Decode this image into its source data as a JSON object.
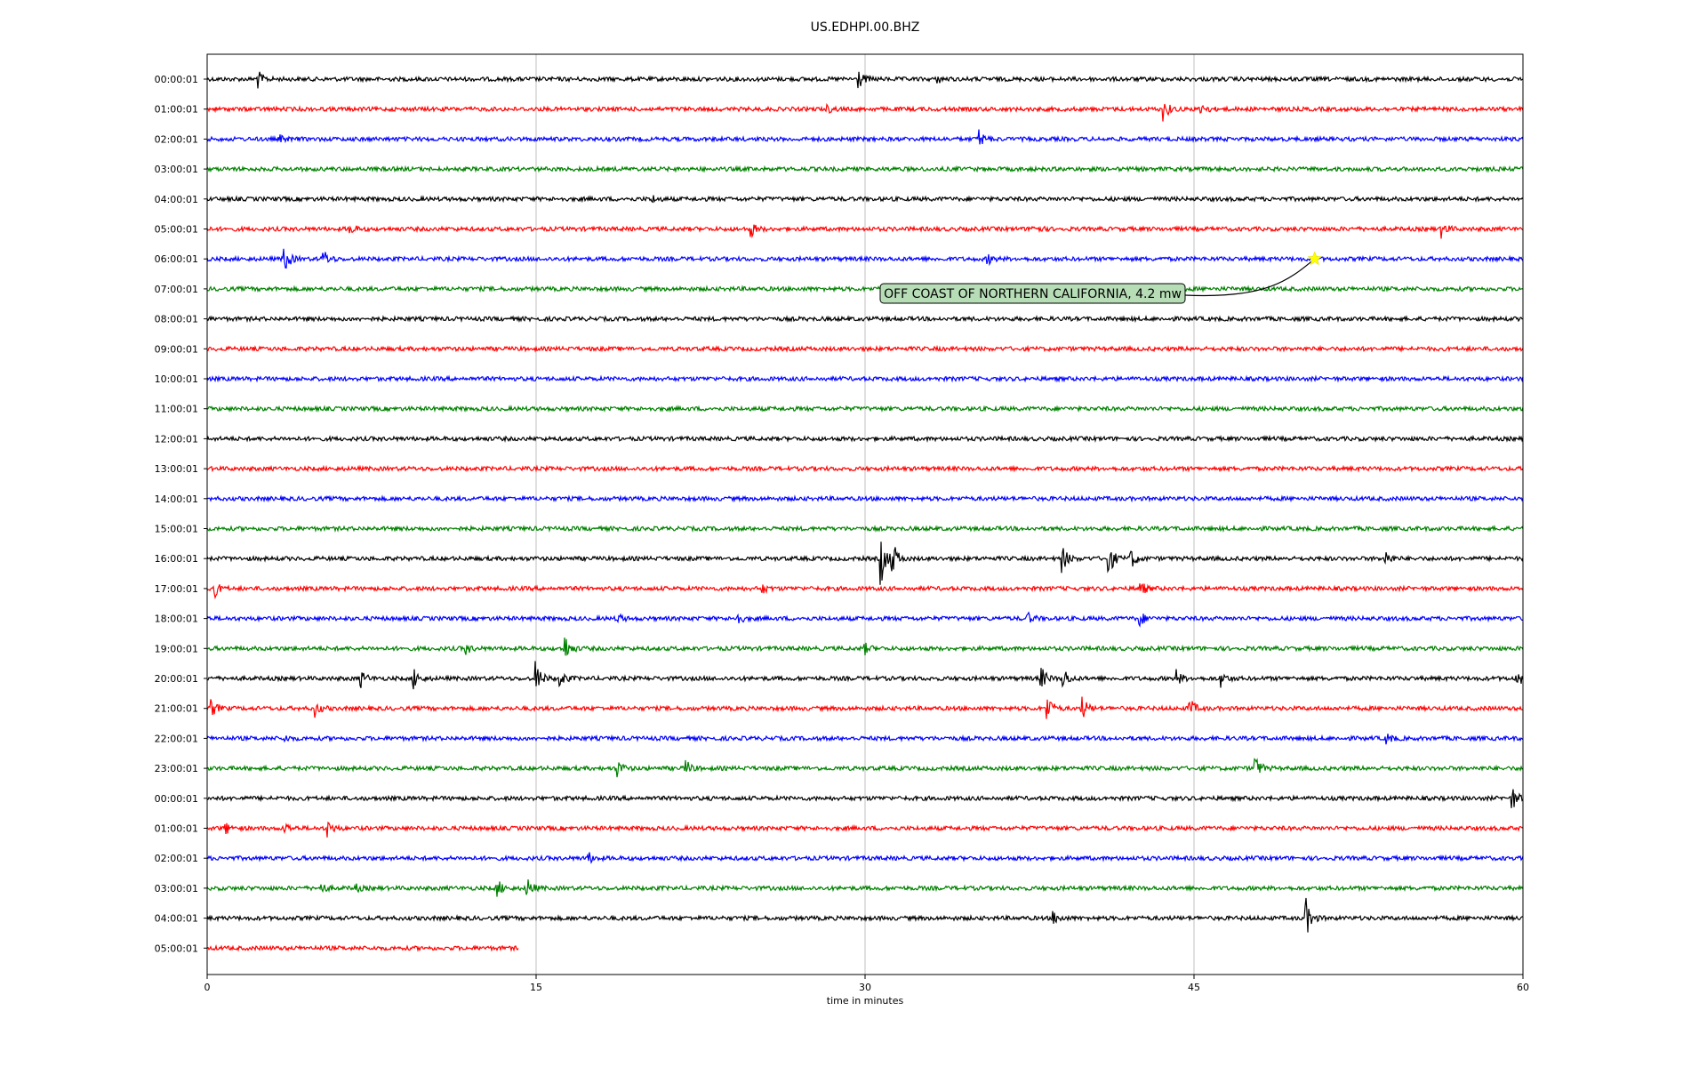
{
  "chart_data": {
    "type": "line",
    "title": "US.EDHPI.00.BHZ",
    "xlabel": "time in minutes",
    "ylabel": "",
    "xlim": [
      0,
      60
    ],
    "x_ticks": [
      "0",
      "15",
      "30",
      "45",
      "60"
    ],
    "grid": "vertical",
    "colors": [
      "#000000",
      "#ff0000",
      "#0000ff",
      "#008000"
    ],
    "rows": [
      {
        "label": "00:00:01",
        "duration": 60,
        "events": [
          {
            "t": 2.3,
            "amp": 0.55
          },
          {
            "t": 29.7,
            "amp": 0.6
          },
          {
            "t": 33.3,
            "amp": 0.2
          }
        ]
      },
      {
        "label": "01:00:01",
        "duration": 60,
        "events": [
          {
            "t": 43.6,
            "amp": 0.7
          },
          {
            "t": 45.3,
            "amp": 0.5
          },
          {
            "t": 28.3,
            "amp": 0.2
          }
        ]
      },
      {
        "label": "02:00:01",
        "duration": 60,
        "events": [
          {
            "t": 35.2,
            "amp": 0.55
          },
          {
            "t": 3.3,
            "amp": 0.2
          }
        ]
      },
      {
        "label": "03:00:01",
        "duration": 60,
        "events": []
      },
      {
        "label": "04:00:01",
        "duration": 60,
        "events": [
          {
            "t": 20.3,
            "amp": 0.2
          }
        ]
      },
      {
        "label": "05:00:01",
        "duration": 60,
        "events": [
          {
            "t": 6.5,
            "amp": 0.4
          },
          {
            "t": 24.8,
            "amp": 0.45
          },
          {
            "t": 37.6,
            "amp": 0.4
          },
          {
            "t": 56.3,
            "amp": 0.5
          }
        ]
      },
      {
        "label": "06:00:01",
        "duration": 60,
        "events": [
          {
            "t": 3.5,
            "amp": 1.0
          },
          {
            "t": 5.3,
            "amp": 0.55
          },
          {
            "t": 35.6,
            "amp": 0.3
          }
        ]
      },
      {
        "label": "07:00:01",
        "duration": 60,
        "events": []
      },
      {
        "label": "08:00:01",
        "duration": 60,
        "events": []
      },
      {
        "label": "09:00:01",
        "duration": 60,
        "events": []
      },
      {
        "label": "10:00:01",
        "duration": 60,
        "events": []
      },
      {
        "label": "11:00:01",
        "duration": 60,
        "events": []
      },
      {
        "label": "12:00:01",
        "duration": 60,
        "events": []
      },
      {
        "label": "13:00:01",
        "duration": 60,
        "events": []
      },
      {
        "label": "14:00:01",
        "duration": 60,
        "events": []
      },
      {
        "label": "15:00:01",
        "duration": 60,
        "events": []
      },
      {
        "label": "16:00:01",
        "duration": 60,
        "events": [
          {
            "t": 30.7,
            "amp": 1.8
          },
          {
            "t": 31.2,
            "amp": 1.3
          },
          {
            "t": 39.0,
            "amp": 0.8
          },
          {
            "t": 41.1,
            "amp": 1.1
          },
          {
            "t": 42.1,
            "amp": 0.7
          },
          {
            "t": 53.7,
            "amp": 0.55
          }
        ]
      },
      {
        "label": "17:00:01",
        "duration": 60,
        "events": [
          {
            "t": 0.3,
            "amp": 0.6
          },
          {
            "t": 25.3,
            "amp": 0.3
          },
          {
            "t": 42.5,
            "amp": 0.6
          }
        ]
      },
      {
        "label": "18:00:01",
        "duration": 60,
        "events": [
          {
            "t": 18.7,
            "amp": 0.3
          },
          {
            "t": 24.1,
            "amp": 0.5
          },
          {
            "t": 37.4,
            "amp": 0.35
          },
          {
            "t": 42.5,
            "amp": 0.5
          }
        ]
      },
      {
        "label": "19:00:01",
        "duration": 60,
        "events": [
          {
            "t": 11.8,
            "amp": 0.3
          },
          {
            "t": 16.3,
            "amp": 0.9
          },
          {
            "t": 30.0,
            "amp": 0.3
          }
        ]
      },
      {
        "label": "20:00:01",
        "duration": 60,
        "events": [
          {
            "t": 7.0,
            "amp": 0.55
          },
          {
            "t": 9.4,
            "amp": 0.7
          },
          {
            "t": 15.0,
            "amp": 1.0
          },
          {
            "t": 16.1,
            "amp": 0.5
          },
          {
            "t": 38.0,
            "amp": 0.8
          },
          {
            "t": 39.0,
            "amp": 0.8
          },
          {
            "t": 44.2,
            "amp": 0.5
          },
          {
            "t": 46.2,
            "amp": 0.5
          },
          {
            "t": 59.7,
            "amp": 0.7
          }
        ]
      },
      {
        "label": "21:00:01",
        "duration": 60,
        "events": [
          {
            "t": 0.2,
            "amp": 0.5
          },
          {
            "t": 4.9,
            "amp": 0.5
          },
          {
            "t": 38.3,
            "amp": 0.9
          },
          {
            "t": 39.9,
            "amp": 0.7
          },
          {
            "t": 44.8,
            "amp": 0.6
          }
        ]
      },
      {
        "label": "22:00:01",
        "duration": 60,
        "events": [
          {
            "t": 3.5,
            "amp": 0.2
          },
          {
            "t": 53.8,
            "amp": 0.3
          }
        ]
      },
      {
        "label": "23:00:01",
        "duration": 60,
        "events": [
          {
            "t": 18.7,
            "amp": 0.55
          },
          {
            "t": 21.8,
            "amp": 0.55
          },
          {
            "t": 47.8,
            "amp": 0.75
          }
        ]
      },
      {
        "label": "00:00:01",
        "duration": 60,
        "events": [
          {
            "t": 59.5,
            "amp": 0.75
          }
        ]
      },
      {
        "label": "01:00:01",
        "duration": 60,
        "events": [
          {
            "t": 0.8,
            "amp": 0.4
          },
          {
            "t": 3.5,
            "amp": 0.4
          },
          {
            "t": 5.5,
            "amp": 0.5
          }
        ]
      },
      {
        "label": "02:00:01",
        "duration": 60,
        "events": [
          {
            "t": 17.4,
            "amp": 0.3
          }
        ]
      },
      {
        "label": "03:00:01",
        "duration": 60,
        "events": [
          {
            "t": 5.2,
            "amp": 0.3
          },
          {
            "t": 6.7,
            "amp": 0.3
          },
          {
            "t": 13.2,
            "amp": 0.6
          },
          {
            "t": 14.6,
            "amp": 0.6
          }
        ]
      },
      {
        "label": "04:00:01",
        "duration": 60,
        "events": [
          {
            "t": 38.6,
            "amp": 0.4
          },
          {
            "t": 50.1,
            "amp": 1.2
          }
        ]
      },
      {
        "label": "05:00:01",
        "duration": 14.2,
        "events": []
      }
    ],
    "annotations": [
      {
        "text": "OFF COAST OF NORTHERN CALIFORNIA, 4.2 mw",
        "row": 6,
        "t": 50.5,
        "marker": "star",
        "marker_color": "#ffff00"
      }
    ]
  }
}
